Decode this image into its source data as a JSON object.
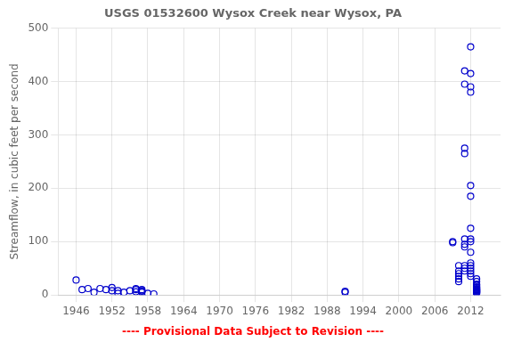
{
  "chart_data": {
    "type": "scatter",
    "title": "USGS 01532600 Wysox Creek near Wysox, PA",
    "ylabel": "Streamflow, in cubic feet per second",
    "annotation": "---- Provisional Data Subject to Revision ----",
    "x": [
      1946,
      1947,
      1948,
      1949,
      1950,
      1951,
      1952,
      1952,
      1953,
      1953,
      1954,
      1955,
      1956,
      1956,
      1956,
      1957,
      1957,
      1957,
      1957,
      1958,
      1959,
      1991,
      1991,
      2009,
      2009,
      2010,
      2010,
      2010,
      2010,
      2010,
      2010,
      2011,
      2011,
      2011,
      2011,
      2011,
      2011,
      2011,
      2011,
      2011,
      2011,
      2012,
      2012,
      2012,
      2012,
      2012,
      2012,
      2012,
      2012,
      2012,
      2012,
      2012,
      2012,
      2012,
      2012,
      2012,
      2012,
      2013,
      2013,
      2013,
      2013,
      2013,
      2013,
      2013,
      2013,
      2013,
      2013,
      2013,
      2013,
      2013,
      2013,
      2013,
      2013
    ],
    "values": [
      28,
      10,
      12,
      5,
      12,
      10,
      8,
      14,
      3,
      8,
      5,
      8,
      6,
      10,
      12,
      5,
      7,
      8,
      10,
      3,
      2,
      7,
      5,
      100,
      98,
      55,
      45,
      40,
      35,
      30,
      25,
      420,
      395,
      275,
      265,
      105,
      95,
      90,
      55,
      50,
      45,
      465,
      415,
      390,
      380,
      205,
      185,
      125,
      105,
      100,
      80,
      60,
      55,
      50,
      45,
      40,
      35,
      30,
      25,
      20,
      18,
      15,
      14,
      12,
      11,
      10,
      9,
      8,
      7,
      6,
      5,
      4,
      3
    ],
    "color": "#0000cc",
    "marker": "circle",
    "xlim": [
      1943,
      2017
    ],
    "ylim": [
      0,
      500
    ],
    "xticks": [
      1946,
      1952,
      1958,
      1964,
      1970,
      1976,
      1982,
      1988,
      1994,
      2000,
      2006,
      2012
    ],
    "yticks": [
      0,
      100,
      200,
      300,
      400,
      500
    ],
    "grid": true
  }
}
